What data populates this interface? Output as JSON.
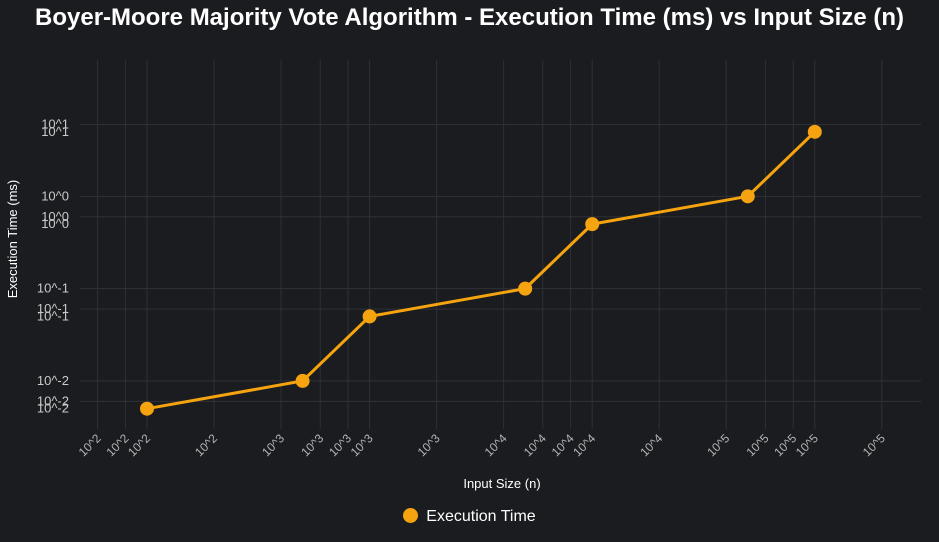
{
  "chart_data": {
    "type": "line",
    "title": "Boyer-Moore Majority Vote Algorithm - Execution Time (ms) vs Input Size (n)",
    "xlabel": "Input Size (n)",
    "ylabel": "Execution Time (ms)",
    "x_scale": "log",
    "y_scale": "log",
    "xlim": [
      50,
      300000
    ],
    "ylim": [
      0.0035,
      30
    ],
    "grid": true,
    "legend_position": "bottom",
    "x_ticks": [
      {
        "value": 60,
        "label": "10^2"
      },
      {
        "value": 80,
        "label": "10^2"
      },
      {
        "value": 100,
        "label": "10^2"
      },
      {
        "value": 200,
        "label": "10^2"
      },
      {
        "value": 400,
        "label": "10^3"
      },
      {
        "value": 600,
        "label": "10^3"
      },
      {
        "value": 800,
        "label": "10^3"
      },
      {
        "value": 1000,
        "label": "10^3"
      },
      {
        "value": 2000,
        "label": "10^3"
      },
      {
        "value": 4000,
        "label": "10^4"
      },
      {
        "value": 6000,
        "label": "10^4"
      },
      {
        "value": 8000,
        "label": "10^4"
      },
      {
        "value": 10000,
        "label": "10^4"
      },
      {
        "value": 20000,
        "label": "10^4"
      },
      {
        "value": 40000,
        "label": "10^5"
      },
      {
        "value": 60000,
        "label": "10^5"
      },
      {
        "value": 80000,
        "label": "10^5"
      },
      {
        "value": 100000,
        "label": "10^5"
      },
      {
        "value": 200000,
        "label": "10^5"
      }
    ],
    "y_ticks": [
      {
        "value": 0.005,
        "label": "10^-2",
        "grid": false
      },
      {
        "value": 0.006,
        "label": "10^-2",
        "grid": true
      },
      {
        "value": 0.01,
        "label": "10^-2",
        "grid": true
      },
      {
        "value": 0.05,
        "label": "10^-1",
        "grid": false
      },
      {
        "value": 0.06,
        "label": "10^-1",
        "grid": true
      },
      {
        "value": 0.1,
        "label": "10^-1",
        "grid": true
      },
      {
        "value": 0.5,
        "label": "10^0",
        "grid": false
      },
      {
        "value": 0.6,
        "label": "10^0",
        "grid": true
      },
      {
        "value": 1,
        "label": "10^0",
        "grid": true
      },
      {
        "value": 5,
        "label": "10^1",
        "grid": false
      },
      {
        "value": 6,
        "label": "10^1",
        "grid": true
      }
    ],
    "series": [
      {
        "name": "Execution Time",
        "color": "#f5a30f",
        "x": [
          100,
          500,
          1000,
          5000,
          10000,
          50000,
          100000
        ],
        "y": [
          0.005,
          0.01,
          0.05,
          0.1,
          0.5,
          1,
          5
        ]
      }
    ]
  }
}
